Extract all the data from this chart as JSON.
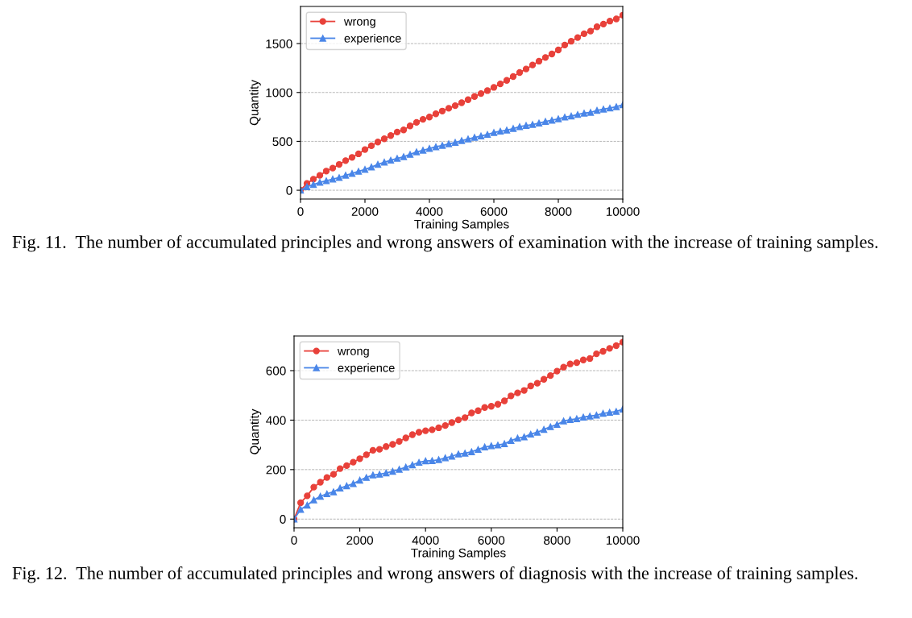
{
  "chart_data": [
    {
      "type": "line",
      "xlabel": "Training Samples",
      "ylabel": "Quantity",
      "xlim": [
        0,
        10000
      ],
      "xticks": [
        0,
        2000,
        4000,
        6000,
        8000,
        10000
      ],
      "ylim": [
        -90,
        1880
      ],
      "yticks": [
        0,
        500,
        1000,
        1500
      ],
      "grid": "y",
      "legend": "top left",
      "line_style": "solid",
      "x": [
        0,
        200,
        400,
        600,
        800,
        1000,
        1200,
        1400,
        1600,
        1800,
        2000,
        2200,
        2400,
        2600,
        2800,
        3000,
        3200,
        3400,
        3600,
        3800,
        4000,
        4200,
        4400,
        4600,
        4800,
        5000,
        5200,
        5400,
        5600,
        5800,
        6000,
        6200,
        6400,
        6600,
        6800,
        7000,
        7200,
        7400,
        7600,
        7800,
        8000,
        8200,
        8400,
        8600,
        8800,
        9000,
        9200,
        9400,
        9600,
        9800,
        10000
      ],
      "series": [
        {
          "name": "wrong",
          "color": "#e8413a",
          "marker": "circle",
          "values": [
            0,
            69,
            113,
            152,
            196,
            226,
            264,
            303,
            336,
            372,
            416,
            455,
            493,
            526,
            559,
            595,
            617,
            658,
            694,
            725,
            749,
            782,
            810,
            838,
            865,
            895,
            926,
            959,
            989,
            1019,
            1052,
            1088,
            1124,
            1163,
            1204,
            1240,
            1281,
            1320,
            1358,
            1394,
            1435,
            1485,
            1524,
            1562,
            1601,
            1628,
            1672,
            1700,
            1730,
            1752,
            1791
          ]
        },
        {
          "name": "experience",
          "color": "#4a86e8",
          "marker": "triangle",
          "values": [
            0,
            36,
            58,
            80,
            96,
            113,
            129,
            152,
            171,
            193,
            212,
            237,
            264,
            287,
            306,
            325,
            342,
            366,
            391,
            408,
            427,
            444,
            457,
            474,
            488,
            507,
            523,
            540,
            554,
            570,
            590,
            603,
            614,
            631,
            650,
            661,
            672,
            686,
            703,
            716,
            730,
            747,
            758,
            774,
            788,
            796,
            816,
            829,
            840,
            854,
            873
          ]
        }
      ],
      "annotations": [
        "Fig. 11.  The number of accumulated principles and wrong answers of examination with the increase of training samples."
      ]
    },
    {
      "type": "line",
      "xlabel": "Training Samples",
      "ylabel": "Quantity",
      "xlim": [
        0,
        10000
      ],
      "xticks": [
        0,
        2000,
        4000,
        6000,
        8000,
        10000
      ],
      "ylim": [
        -35,
        740
      ],
      "yticks": [
        0,
        200,
        400,
        600
      ],
      "grid": "y",
      "legend": "top left",
      "line_style": "solid",
      "x": [
        0,
        200,
        400,
        600,
        800,
        1000,
        1200,
        1400,
        1600,
        1800,
        2000,
        2200,
        2400,
        2600,
        2800,
        3000,
        3200,
        3400,
        3600,
        3800,
        4000,
        4200,
        4400,
        4600,
        4800,
        5000,
        5200,
        5400,
        5600,
        5800,
        6000,
        6200,
        6400,
        6600,
        6800,
        7000,
        7200,
        7400,
        7600,
        7800,
        8000,
        8200,
        8400,
        8600,
        8800,
        9000,
        9200,
        9400,
        9600,
        9800,
        10000
      ],
      "series": [
        {
          "name": "wrong",
          "color": "#e8413a",
          "marker": "circle",
          "values": [
            0,
            66,
            94,
            129,
            149,
            168,
            181,
            204,
            216,
            230,
            244,
            260,
            278,
            282,
            293,
            302,
            314,
            328,
            341,
            351,
            357,
            361,
            369,
            378,
            390,
            401,
            410,
            429,
            438,
            451,
            456,
            464,
            478,
            498,
            510,
            520,
            538,
            549,
            565,
            580,
            598,
            614,
            627,
            632,
            643,
            649,
            668,
            678,
            690,
            701,
            715
          ]
        },
        {
          "name": "experience",
          "color": "#4a86e8",
          "marker": "triangle",
          "values": [
            0,
            39,
            56,
            77,
            92,
            102,
            110,
            125,
            134,
            143,
            157,
            168,
            178,
            181,
            186,
            193,
            201,
            210,
            219,
            229,
            235,
            236,
            240,
            247,
            254,
            263,
            266,
            272,
            281,
            291,
            296,
            299,
            304,
            317,
            327,
            332,
            343,
            351,
            362,
            373,
            382,
            396,
            402,
            405,
            412,
            416,
            420,
            427,
            431,
            435,
            444
          ]
        }
      ],
      "annotations": [
        "Fig. 12.  The number of accumulated principles and wrong answers of diagnosis with the increase of training samples."
      ]
    }
  ]
}
